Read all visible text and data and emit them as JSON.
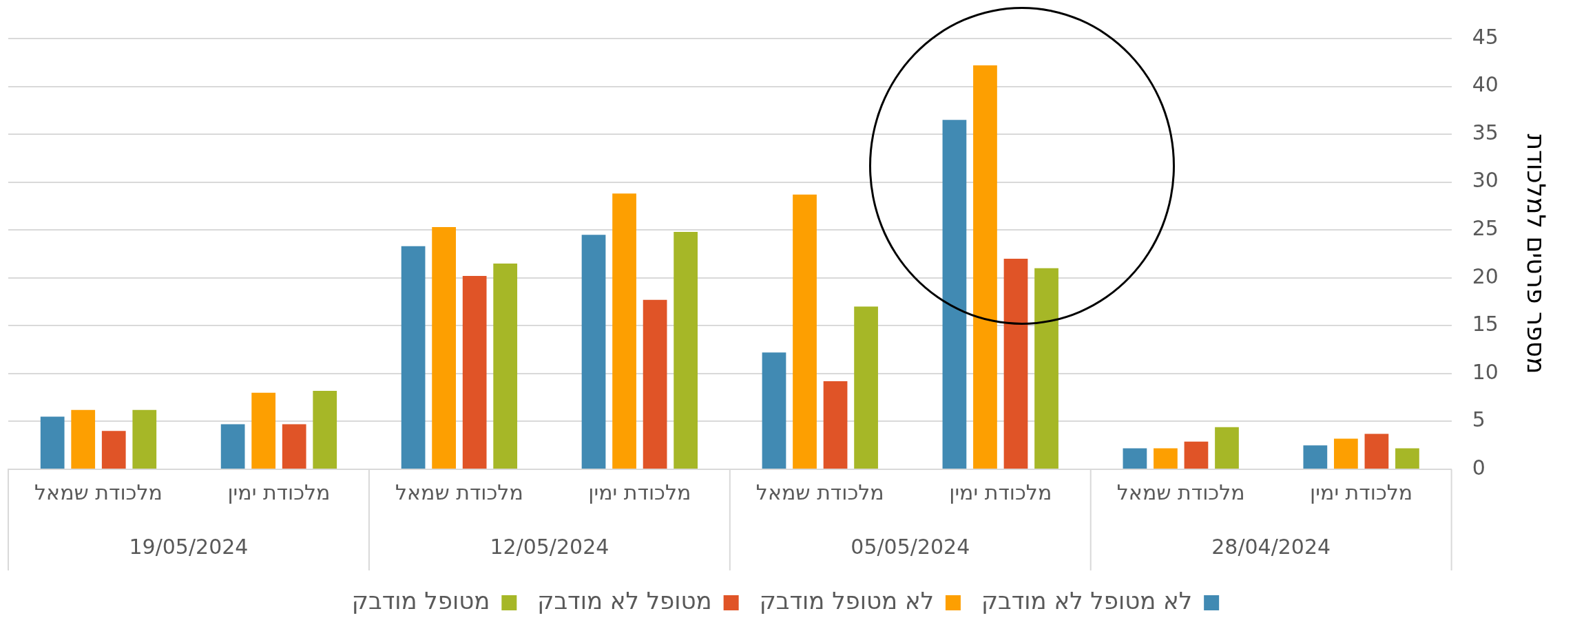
{
  "chart_data": {
    "type": "bar",
    "categories": [
      "מלכודת שמאל",
      "מלכודת ימין",
      "מלכודת שמאל",
      "מלכודת ימין",
      "מלכודת שמאל",
      "מלכודת ימין",
      "מלכודת שמאל",
      "מלכודת ימין"
    ],
    "annotations": [
      "19/05/2024",
      "12/05/2024",
      "05/05/2024",
      "28/04/2024"
    ],
    "series": [
      {
        "name": "לא מטופל לא מודבק",
        "color": "#418ab3",
        "values": [
          5.5,
          4.7,
          23.3,
          24.5,
          12.2,
          36.5,
          2.2,
          2.5
        ]
      },
      {
        "name": "לא מטופל מודבק",
        "color": "#fd9f01",
        "values": [
          6.2,
          8.0,
          25.3,
          28.8,
          28.7,
          42.2,
          2.2,
          3.2
        ]
      },
      {
        "name": "מטופל לא מודבק",
        "color": "#e05427",
        "values": [
          4.0,
          4.7,
          20.2,
          17.7,
          9.2,
          22.0,
          2.9,
          3.7
        ]
      },
      {
        "name": "מטופל מודבק",
        "color": "#a6b727",
        "values": [
          6.2,
          8.2,
          21.5,
          24.8,
          17.0,
          21.0,
          4.4,
          2.2
        ]
      }
    ],
    "ylabel": "מספר פרטים למלכודת",
    "ylim": [
      0,
      45
    ],
    "yticks": [
      0,
      5,
      10,
      15,
      20,
      25,
      30,
      35,
      40,
      45
    ],
    "grid": "y",
    "legend": "bottom"
  }
}
